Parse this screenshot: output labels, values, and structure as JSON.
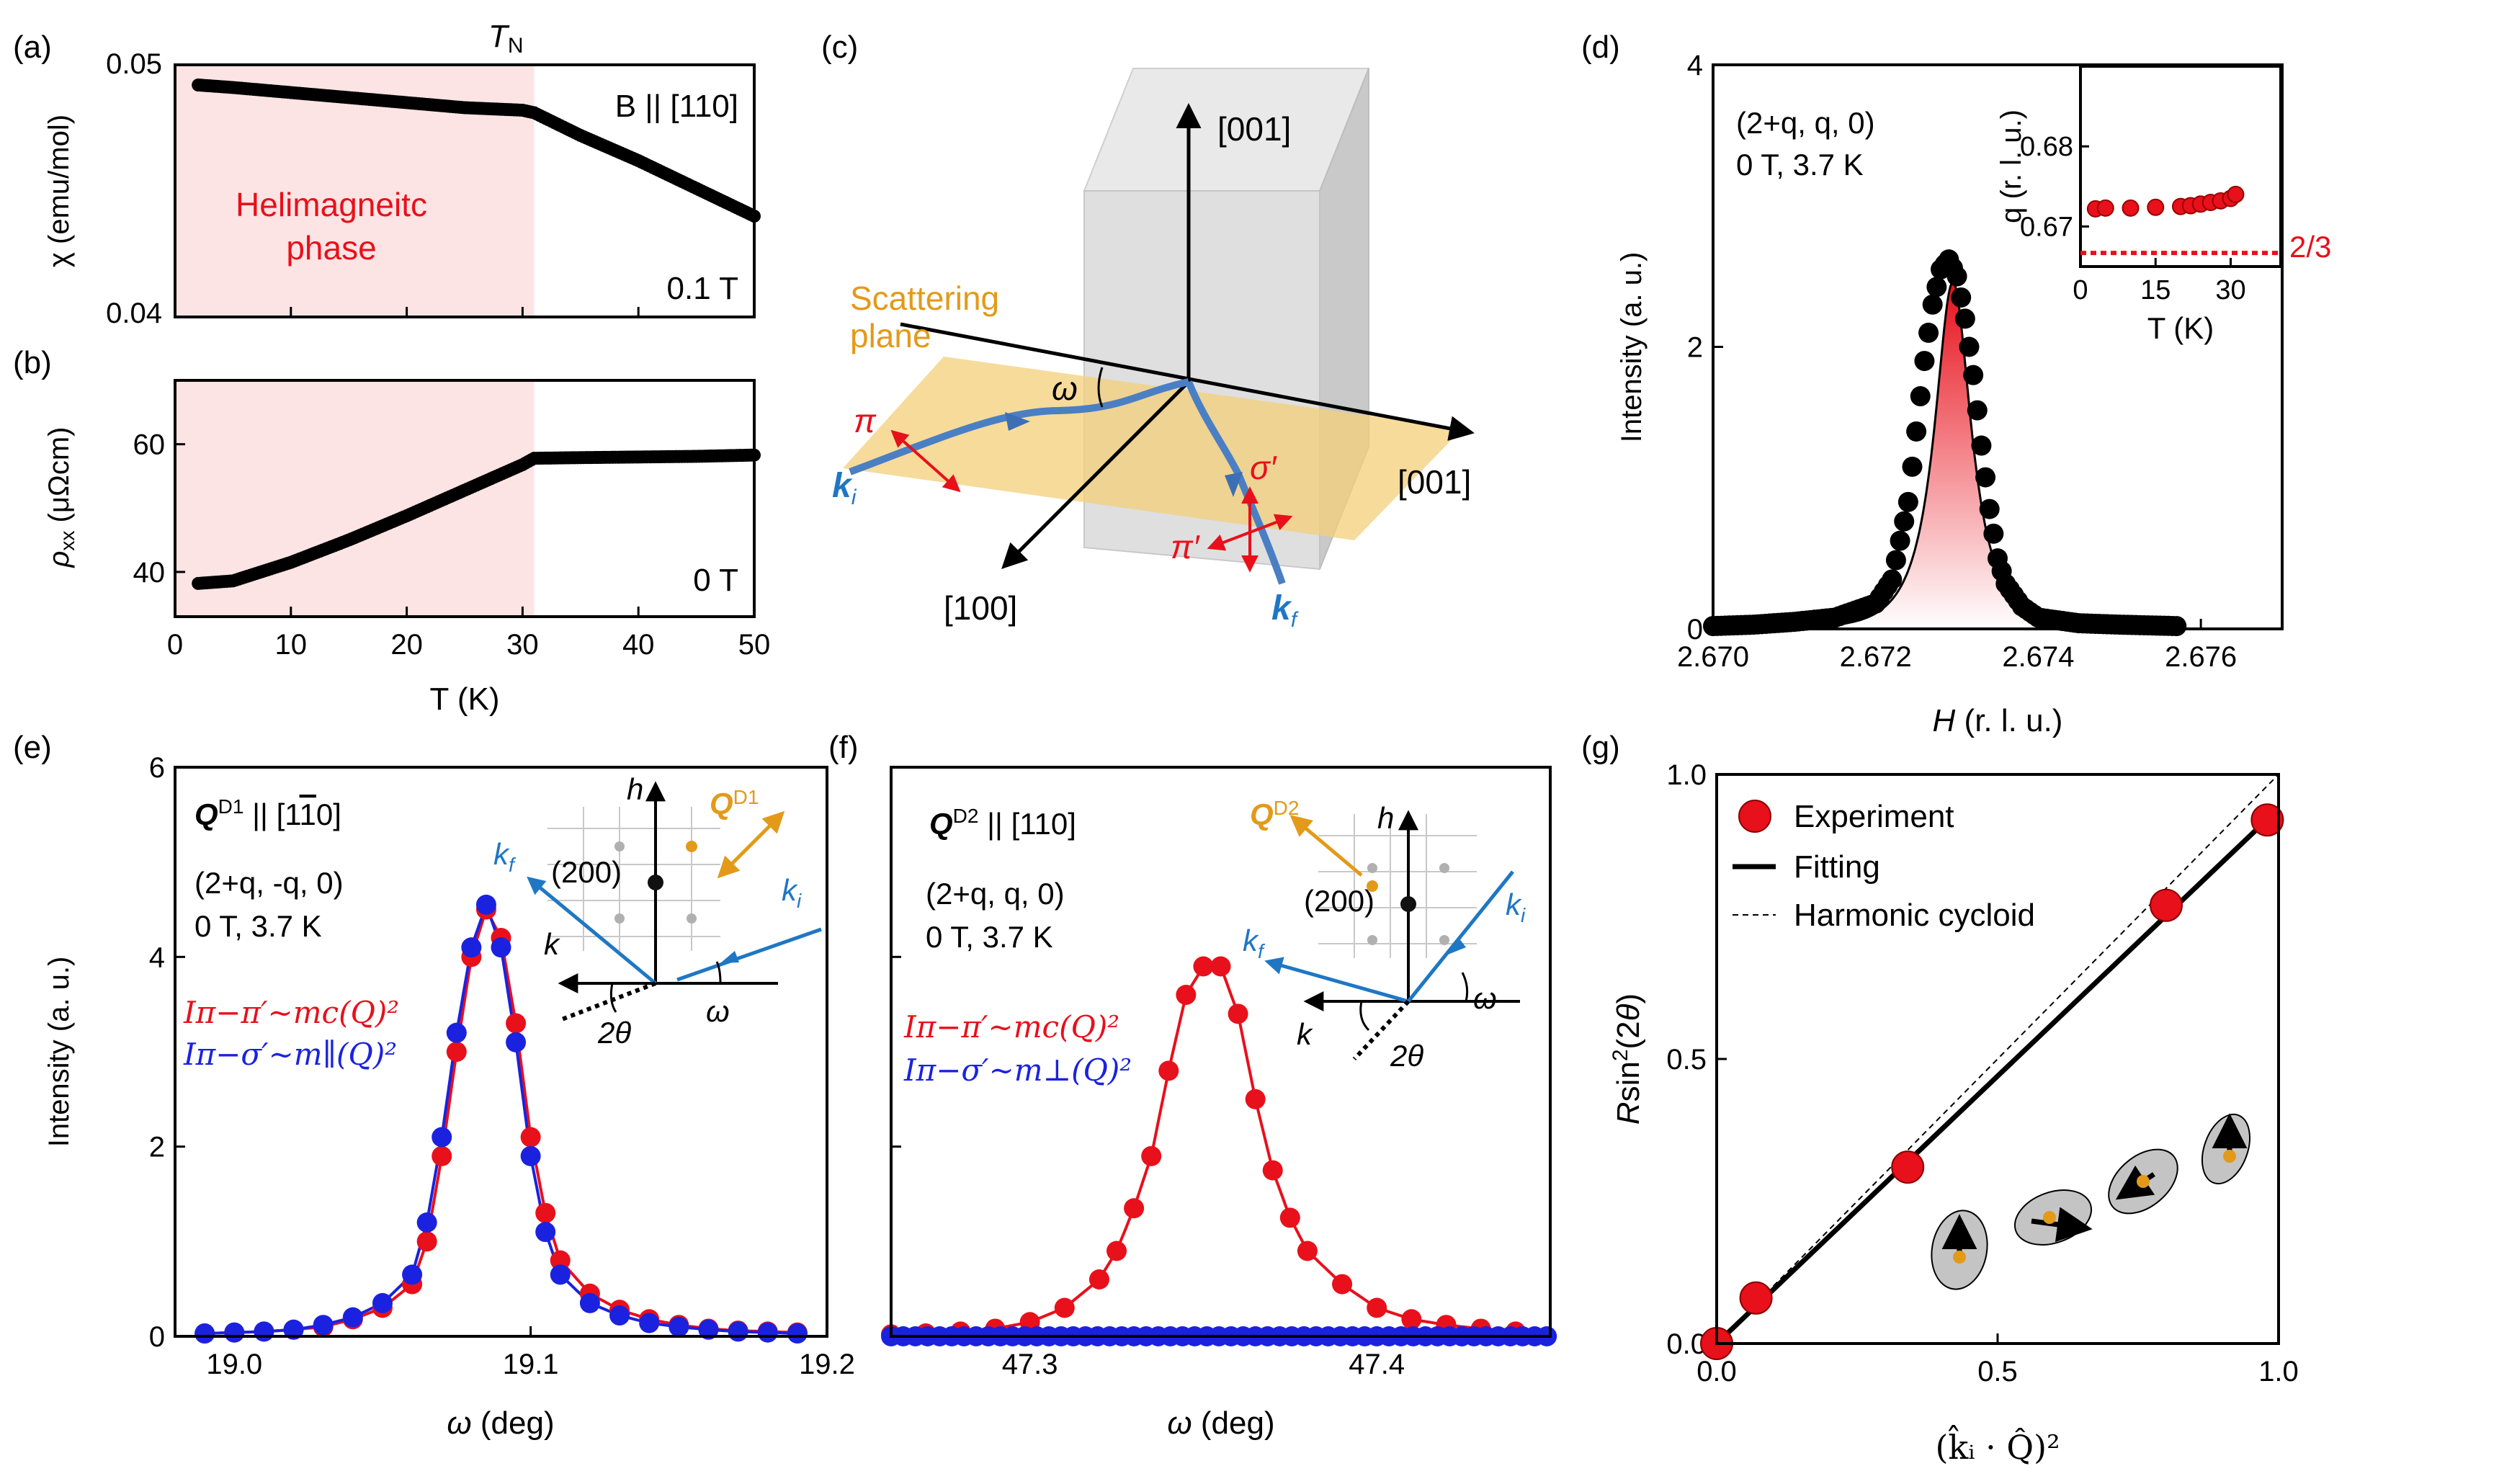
{
  "panel_labels": {
    "a": "(a)",
    "b": "(b)",
    "c": "(c)",
    "d": "(d)",
    "e": "(e)",
    "f": "(f)",
    "g": "(g)"
  },
  "colors": {
    "red": "#e8101b",
    "blue": "#1a22e0",
    "pink": "#fde4e4",
    "orange": "#e39a18",
    "steel": "#1f77c4",
    "plane": "#f3cf7a",
    "box": "#d6d6d6"
  },
  "chart_data": [
    {
      "id": "a",
      "type": "line",
      "title_top": "T",
      "title_top_sub": "N",
      "ylabel": "χ (emu/mol)",
      "xlabel": "",
      "ylim": [
        0.04,
        0.05
      ],
      "xlim": [
        0,
        50
      ],
      "yticks": [
        "0.04",
        "0.05"
      ],
      "annotation_field": "B || [110]",
      "annotation_value": "0.1 T",
      "shaded_region": {
        "from": 0,
        "to": 31,
        "label_line1": "Helimagneitc",
        "label_line2": "phase"
      },
      "x": [
        2,
        5,
        10,
        15,
        20,
        25,
        30,
        31,
        35,
        40,
        45,
        50
      ],
      "y": [
        0.0492,
        0.0491,
        0.0489,
        0.0487,
        0.0485,
        0.0483,
        0.0482,
        0.0481,
        0.0472,
        0.0462,
        0.0451,
        0.044
      ]
    },
    {
      "id": "b",
      "type": "line",
      "ylabel": "ρ",
      "ylabel_sub": "xx",
      "ylabel_unit": " (μΩcm)",
      "xlabel": "T (K)",
      "xlim": [
        0,
        50
      ],
      "ylim": [
        33,
        70
      ],
      "xticks": [
        "0",
        "10",
        "20",
        "30",
        "40",
        "50"
      ],
      "yticks": [
        "40",
        "60"
      ],
      "annotation_value": "0 T",
      "shaded_region": {
        "from": 0,
        "to": 31
      },
      "x": [
        2,
        5,
        10,
        15,
        20,
        25,
        30,
        31,
        35,
        40,
        45,
        50
      ],
      "y": [
        38.2,
        38.6,
        41.5,
        45.0,
        48.8,
        52.8,
        56.8,
        57.8,
        57.9,
        58.0,
        58.1,
        58.3
      ]
    },
    {
      "id": "d",
      "type": "scatter",
      "ylabel": "Intensity (a. u.)",
      "xlabel": "H (r. l. u.)",
      "xlim": [
        2.67,
        2.677
      ],
      "ylim": [
        0,
        4
      ],
      "xticks": [
        "2.670",
        "2.672",
        "2.674",
        "2.676"
      ],
      "yticks": [
        "0",
        "2",
        "4"
      ],
      "annotation_line1": "(2+q, q, 0)",
      "annotation_line2": "0 T, 3.7 K",
      "x": [
        2.67,
        2.6705,
        2.671,
        2.6715,
        2.672,
        2.6722,
        2.6724,
        2.6725,
        2.6726,
        2.6727,
        2.6728,
        2.6729,
        2.673,
        2.6731,
        2.6732,
        2.6733,
        2.6734,
        2.6735,
        2.6736,
        2.6738,
        2.674,
        2.6745,
        2.675,
        2.6757
      ],
      "y": [
        0.02,
        0.03,
        0.05,
        0.08,
        0.18,
        0.35,
        0.9,
        1.4,
        1.9,
        2.3,
        2.55,
        2.62,
        2.5,
        2.2,
        1.8,
        1.3,
        0.85,
        0.5,
        0.32,
        0.16,
        0.08,
        0.04,
        0.03,
        0.02
      ],
      "inset": {
        "ylabel": "q (r. l. u.)",
        "xlabel": "T (K)",
        "xlim": [
          0,
          40
        ],
        "ylim": [
          0.665,
          0.69
        ],
        "xticks": [
          "0",
          "15",
          "30"
        ],
        "yticks": [
          "0.67",
          "0.68"
        ],
        "reference_value": 0.6667,
        "reference_label": "2/3",
        "x": [
          3,
          5,
          10,
          15,
          20,
          22,
          24,
          26,
          28,
          30,
          31
        ],
        "y": [
          0.6722,
          0.6723,
          0.6723,
          0.6724,
          0.6725,
          0.6726,
          0.6728,
          0.673,
          0.6732,
          0.6735,
          0.674
        ]
      }
    },
    {
      "id": "e",
      "type": "scatter",
      "ylabel": "Intensity (a. u.)",
      "xlabel": "ω (deg)",
      "xlim": [
        18.98,
        19.2
      ],
      "ylim": [
        0,
        6
      ],
      "xticks": [
        "19.0",
        "19.1",
        "19.2"
      ],
      "yticks": [
        "0",
        "2",
        "4",
        "6"
      ],
      "annotation_q": "Q",
      "annotation_q_sup": "D1",
      "annotation_q_tail": " || [1",
      "annotation_q_bar": "1",
      "annotation_q_end": "0]",
      "annotation_line1": "(2+q, -q, 0)",
      "annotation_line2": "0 T, 3.7 K",
      "formula1": "Iπ−π′∼mc(Q)²",
      "formula2": "Iπ−σ′∼m∥(Q)²",
      "series": [
        {
          "name": "π-π′",
          "color": "red",
          "x": [
            18.99,
            19.0,
            19.01,
            19.02,
            19.03,
            19.04,
            19.05,
            19.06,
            19.065,
            19.07,
            19.075,
            19.08,
            19.085,
            19.09,
            19.095,
            19.1,
            19.105,
            19.11,
            19.12,
            19.13,
            19.14,
            19.15,
            19.16,
            19.17,
            19.18,
            19.19
          ],
          "y": [
            0.03,
            0.04,
            0.05,
            0.07,
            0.1,
            0.18,
            0.3,
            0.55,
            1.0,
            1.9,
            3.0,
            4.0,
            4.5,
            4.2,
            3.3,
            2.1,
            1.3,
            0.8,
            0.45,
            0.28,
            0.18,
            0.12,
            0.08,
            0.06,
            0.05,
            0.04
          ]
        },
        {
          "name": "π-σ′",
          "color": "blue",
          "x": [
            18.99,
            19.0,
            19.01,
            19.02,
            19.03,
            19.04,
            19.05,
            19.06,
            19.065,
            19.07,
            19.075,
            19.08,
            19.085,
            19.09,
            19.095,
            19.1,
            19.105,
            19.11,
            19.12,
            19.13,
            19.14,
            19.15,
            19.16,
            19.17,
            19.18,
            19.19
          ],
          "y": [
            0.03,
            0.04,
            0.05,
            0.07,
            0.12,
            0.2,
            0.35,
            0.65,
            1.2,
            2.1,
            3.2,
            4.1,
            4.55,
            4.1,
            3.1,
            1.9,
            1.1,
            0.65,
            0.35,
            0.22,
            0.14,
            0.1,
            0.07,
            0.05,
            0.04,
            0.03
          ]
        }
      ],
      "inset_labels": {
        "h": "h",
        "k": "k",
        "kf": "k",
        "kf_sub": "f",
        "ki": "k",
        "ki_sub": "i",
        "two_theta": "2θ",
        "omega": "ω",
        "reflection": "(200)",
        "q": "Q",
        "q_sup": "D1"
      }
    },
    {
      "id": "f",
      "type": "scatter",
      "ylabel": "",
      "xlabel": "ω (deg)",
      "xlim": [
        47.26,
        47.45
      ],
      "ylim": [
        0,
        6
      ],
      "xticks": [
        "47.3",
        "47.4"
      ],
      "annotation_q": "Q",
      "annotation_q_sup": "D2",
      "annotation_q_tail": " || [110]",
      "annotation_line1": "(2+q, q, 0)",
      "annotation_line2": "0 T, 3.7 K",
      "formula1": "Iπ−π′∼mc(Q)²",
      "formula2": "Iπ−σ′∼m⊥(Q)²",
      "series": [
        {
          "name": "π-π′",
          "color": "red",
          "x": [
            47.26,
            47.27,
            47.28,
            47.29,
            47.3,
            47.31,
            47.32,
            47.325,
            47.33,
            47.335,
            47.34,
            47.345,
            47.35,
            47.355,
            47.36,
            47.365,
            47.37,
            47.375,
            47.38,
            47.39,
            47.4,
            47.41,
            47.42,
            47.43,
            47.44
          ],
          "y": [
            0.02,
            0.03,
            0.05,
            0.08,
            0.15,
            0.3,
            0.6,
            0.9,
            1.35,
            1.9,
            2.8,
            3.6,
            3.9,
            3.9,
            3.4,
            2.5,
            1.75,
            1.25,
            0.9,
            0.55,
            0.3,
            0.18,
            0.12,
            0.08,
            0.05
          ]
        },
        {
          "name": "π-σ′",
          "color": "blue",
          "x": [
            47.26,
            47.27,
            47.28,
            47.29,
            47.3,
            47.31,
            47.32,
            47.33,
            47.34,
            47.35,
            47.36,
            47.37,
            47.38,
            47.39,
            47.4,
            47.41,
            47.42,
            47.43,
            47.44
          ],
          "y": [
            0.0,
            0.0,
            0.0,
            0.0,
            0.0,
            0.0,
            0.0,
            0.0,
            0.0,
            0.0,
            0.0,
            0.0,
            0.0,
            0.0,
            0.0,
            0.0,
            0.0,
            0.0,
            0.0
          ]
        }
      ],
      "inset_labels": {
        "h": "h",
        "k": "k",
        "kf": "k",
        "kf_sub": "f",
        "ki": "k",
        "ki_sub": "i",
        "two_theta": "2θ",
        "omega": "ω",
        "reflection": "(200)",
        "q": "Q",
        "q_sup": "D2"
      }
    },
    {
      "id": "g",
      "type": "scatter",
      "ylabel": "Rsin²(2θ)",
      "xlabel": "(k̂ᵢ · Q̂)²",
      "xlim": [
        0,
        1
      ],
      "ylim": [
        0,
        1
      ],
      "xticks": [
        "0.0",
        "0.5",
        "1.0"
      ],
      "yticks": [
        "0.0",
        "0.5",
        "1.0"
      ],
      "legend": [
        "Experiment",
        "Fitting",
        "Harmonic cycloid"
      ],
      "x": [
        0.0,
        0.07,
        0.34,
        0.8,
        0.98
      ],
      "y": [
        0.0,
        0.08,
        0.31,
        0.77,
        0.92
      ],
      "fit_slope": 0.94,
      "harmonic_slope": 1.0
    }
  ],
  "panel_c": {
    "axis_001_top": "[001]",
    "axis_001_right": "[001]",
    "axis_100": "[100]",
    "plane_line1": "Scattering",
    "plane_line2": "plane",
    "omega": "ω",
    "pi": "π",
    "pi_prime": "π′",
    "sigma_prime": "σ′",
    "ki": "k",
    "ki_sub": "i",
    "kf": "k",
    "kf_sub": "f"
  }
}
